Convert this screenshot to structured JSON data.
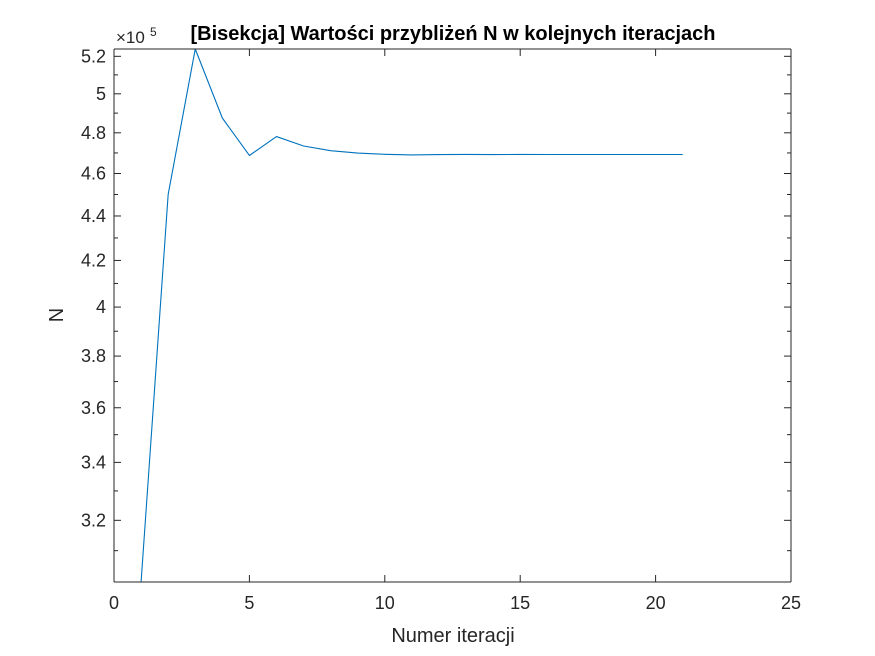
{
  "chart_data": {
    "type": "line",
    "title": "[Bisekcja] Wartości przybliżeń N w kolejnych iteracjach",
    "xlabel": "Numer iteracji",
    "ylabel": "N",
    "y_exponent_base": "×10",
    "y_exponent_power": "5",
    "y_scale": "log",
    "xlim": [
      0,
      25
    ],
    "ylim": [
      300000,
      524000
    ],
    "x_ticks": [
      0,
      5,
      10,
      15,
      20,
      25
    ],
    "x_tick_labels": [
      "0",
      "5",
      "10",
      "15",
      "20",
      "25"
    ],
    "y_ticks": [
      320000,
      340000,
      360000,
      380000,
      400000,
      420000,
      440000,
      460000,
      480000,
      500000,
      520000
    ],
    "y_tick_labels": [
      "3.2",
      "3.4",
      "3.6",
      "3.8",
      "4",
      "4.2",
      "4.4",
      "4.6",
      "4.8",
      "5",
      "5.2"
    ],
    "grid": false,
    "series": [
      {
        "color": "#0072bd",
        "x": [
          1,
          2,
          3,
          4,
          5,
          6,
          7,
          8,
          9,
          10,
          11,
          12,
          13,
          14,
          15,
          16,
          17,
          18,
          19,
          20,
          21
        ],
        "y": [
          300000,
          450000,
          525000,
          487500,
          468750,
          478125,
          473438,
          471094,
          469922,
          469336,
          469043,
          469189,
          469263,
          469226,
          469244,
          469235,
          469240,
          469238,
          469238,
          469238,
          469238
        ]
      }
    ]
  }
}
